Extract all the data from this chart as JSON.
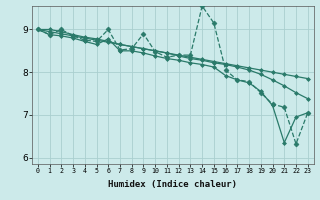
{
  "xlabel": "Humidex (Indice chaleur)",
  "bg_color": "#cceaea",
  "line_color": "#2a7a6a",
  "grid_color": "#aacfcf",
  "xlim": [
    -0.5,
    23.5
  ],
  "ylim": [
    5.85,
    9.55
  ],
  "yticks": [
    6,
    7,
    8,
    9
  ],
  "xticks": [
    0,
    1,
    2,
    3,
    4,
    5,
    6,
    7,
    8,
    9,
    10,
    11,
    12,
    13,
    14,
    15,
    16,
    17,
    18,
    19,
    20,
    21,
    22,
    23
  ],
  "series": [
    [
      9.0,
      8.88,
      8.85,
      8.8,
      8.72,
      8.65,
      8.78,
      8.5,
      8.5,
      8.45,
      8.38,
      8.32,
      8.28,
      8.22,
      8.18,
      8.12,
      7.92,
      7.82,
      7.75,
      7.55,
      7.22,
      6.35,
      6.95,
      7.05
    ],
    [
      9.0,
      9.0,
      8.95,
      8.88,
      8.82,
      8.78,
      8.72,
      8.65,
      8.6,
      8.55,
      8.5,
      8.45,
      8.38,
      8.32,
      8.28,
      8.22,
      8.18,
      8.12,
      8.05,
      7.95,
      7.82,
      7.68,
      7.52,
      7.38
    ],
    [
      9.0,
      8.95,
      8.9,
      8.85,
      8.8,
      8.75,
      8.7,
      8.65,
      8.6,
      8.55,
      8.5,
      8.45,
      8.4,
      8.35,
      8.3,
      8.25,
      8.2,
      8.15,
      8.1,
      8.05,
      8.0,
      7.95,
      7.9,
      7.85
    ],
    [
      9.0,
      8.88,
      9.0,
      8.85,
      8.75,
      8.72,
      9.0,
      8.52,
      8.55,
      8.9,
      8.48,
      8.35,
      8.4,
      8.4,
      9.55,
      9.15,
      8.05,
      7.82,
      7.78,
      7.52,
      7.25,
      7.18,
      6.32,
      7.05
    ]
  ]
}
